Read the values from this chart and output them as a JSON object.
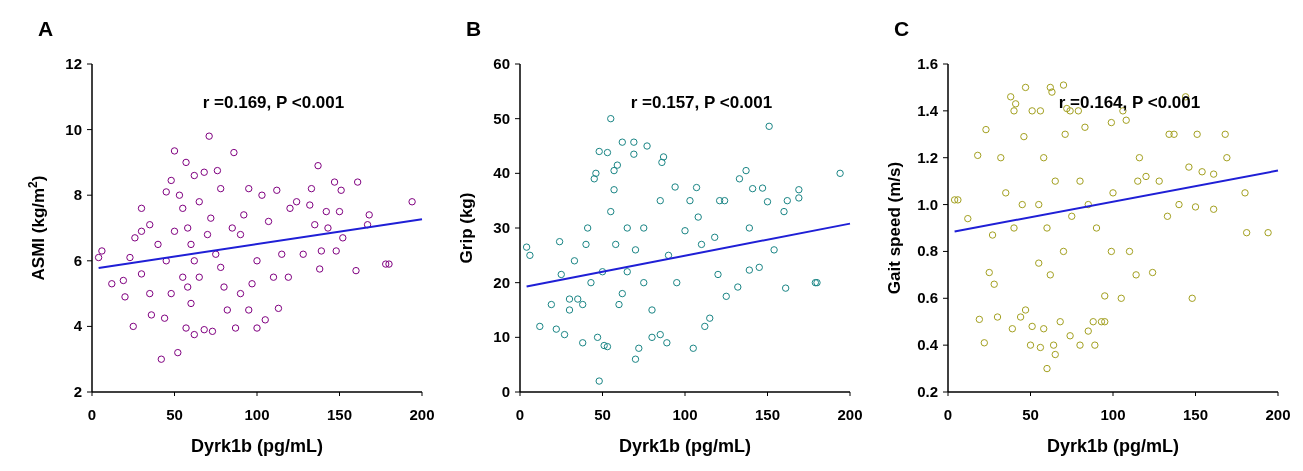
{
  "chart_data": [
    {
      "type": "scatter",
      "title": "A",
      "xlabel": "Dyrk1b (pg/mL)",
      "ylabel": "ASMI (kg/m$^{2}$)",
      "annotations": [
        "r =0.169, P <0.001"
      ],
      "xlim": [
        0,
        200
      ],
      "xticks": [
        0,
        50,
        100,
        150,
        200
      ],
      "ylim": [
        2,
        12
      ],
      "yticks": [
        2,
        4,
        6,
        8,
        10,
        12
      ],
      "series": [
        {
          "type": "scatter",
          "marker": "circle",
          "color": "#800080",
          "x": [
            4,
            6,
            12,
            19,
            20,
            25,
            30,
            42,
            52,
            50,
            57,
            62,
            68,
            71,
            76,
            86,
            137,
            147,
            161,
            194,
            180,
            178,
            160,
            152,
            148,
            139,
            138,
            119,
            113,
            105,
            100,
            87,
            73,
            62,
            57,
            68,
            44,
            36,
            23,
            26,
            30,
            35,
            40,
            45,
            48,
            53,
            55,
            58,
            60,
            62,
            55,
            58,
            60,
            65,
            70,
            72,
            75,
            78,
            80,
            82,
            85,
            90,
            92,
            95,
            97,
            100,
            103,
            107,
            110,
            112,
            115,
            120,
            124,
            128,
            132,
            133,
            135,
            142,
            150,
            151,
            168,
            167,
            143,
            90,
            95,
            48,
            45,
            50,
            65,
            78,
            30,
            35
          ],
          "values": [
            6.1,
            6.3,
            5.3,
            5.4,
            4.9,
            4.0,
            7.6,
            3.0,
            3.2,
            9.35,
            9.0,
            8.6,
            8.7,
            9.8,
            8.75,
            9.3,
            8.9,
            8.4,
            8.4,
            7.8,
            5.9,
            5.9,
            5.7,
            6.7,
            6.3,
            6.3,
            5.75,
            5.5,
            4.55,
            4.2,
            3.95,
            3.95,
            3.85,
            3.75,
            3.95,
            3.9,
            4.25,
            4.35,
            6.1,
            6.7,
            6.9,
            7.1,
            6.5,
            8.1,
            8.45,
            8.0,
            7.6,
            7.0,
            6.5,
            6.0,
            5.5,
            5.2,
            4.7,
            5.5,
            6.8,
            7.3,
            6.2,
            5.8,
            5.2,
            4.5,
            7.0,
            6.8,
            7.4,
            8.2,
            5.3,
            6.0,
            8.0,
            7.2,
            5.5,
            8.15,
            6.2,
            7.6,
            7.8,
            6.2,
            7.7,
            8.2,
            7.1,
            7.5,
            7.5,
            8.15,
            7.4,
            7.1,
            7.0,
            5.0,
            4.5,
            5.0,
            6.0,
            6.9,
            7.8,
            8.2,
            5.6,
            5.0
          ]
        },
        {
          "type": "line",
          "color": "#1f1fd6",
          "x": [
            4,
            200
          ],
          "values": [
            5.78,
            7.27
          ]
        }
      ]
    },
    {
      "type": "scatter",
      "title": "B",
      "xlabel": "Dyrk1b (pg/mL)",
      "ylabel": "Grip (kg)",
      "annotations": [
        "r =0.157, P <0.001"
      ],
      "xlim": [
        0,
        200
      ],
      "xticks": [
        0,
        50,
        100,
        150,
        200
      ],
      "ylim": [
        0,
        60
      ],
      "yticks": [
        0,
        10,
        20,
        30,
        40,
        50,
        60
      ],
      "series": [
        {
          "type": "scatter",
          "marker": "circle",
          "color": "#1a8585",
          "x": [
            4,
            6,
            12,
            19,
            22,
            25,
            24,
            27,
            30,
            33,
            38,
            38,
            41,
            43,
            45,
            46,
            47,
            48,
            48,
            51,
            53,
            53,
            55,
            57,
            57,
            59,
            62,
            69,
            69,
            70,
            72,
            77,
            80,
            85,
            86,
            87,
            89,
            94,
            105,
            107,
            108,
            112,
            115,
            121,
            124,
            125,
            133,
            137,
            139,
            141,
            147,
            150,
            151,
            154,
            160,
            161,
            162,
            169,
            169,
            180,
            179,
            194,
            145,
            139,
            132,
            120,
            118,
            60,
            62,
            65,
            70,
            75,
            80,
            58,
            55,
            65,
            90,
            95,
            100,
            103,
            110,
            40,
            50,
            35,
            30,
            85,
            75
          ],
          "values": [
            26.5,
            25,
            12,
            16,
            11.5,
            21.5,
            27.5,
            10.5,
            15,
            24,
            9,
            16,
            30,
            20,
            39,
            40,
            10,
            44,
            2,
            8.5,
            8.3,
            43.8,
            50,
            37,
            40.5,
            41.5,
            45.7,
            45.7,
            43.5,
            6,
            8,
            45,
            10,
            10.5,
            42,
            43,
            9,
            37.5,
            8,
            37.4,
            32,
            12,
            13.5,
            35,
            35,
            17.5,
            39,
            40.5,
            30,
            37.2,
            37.3,
            34.8,
            48.6,
            26,
            33,
            19,
            35,
            37,
            35.5,
            20,
            20,
            40,
            22.8,
            22.3,
            19.2,
            21.5,
            28.3,
            16,
            18,
            22,
            26,
            20,
            15,
            27,
            33,
            30,
            25,
            20,
            29.5,
            35,
            27,
            27,
            22,
            17,
            17,
            35,
            30
          ]
        },
        {
          "type": "line",
          "color": "#1f1fd6",
          "x": [
            4,
            200
          ],
          "values": [
            19.3,
            30.8
          ]
        }
      ]
    },
    {
      "type": "scatter",
      "title": "C",
      "xlabel": "Dyrk1b (pg/mL)",
      "ylabel": "Gait speed (m/s)",
      "annotations": [
        "r =0.164, P <0.001"
      ],
      "xlim": [
        0,
        200
      ],
      "xticks": [
        0,
        50,
        100,
        150,
        200
      ],
      "ylim": [
        0.2,
        1.6
      ],
      "yticks": [
        {
          "value": 0.2,
          "label": "0.2"
        },
        {
          "value": 0.4,
          "label": "0.4"
        },
        {
          "value": 0.6,
          "label": "0.6"
        },
        {
          "value": 0.8,
          "label": "0.8"
        },
        {
          "value": 1.0,
          "label": "1.0"
        },
        {
          "value": 1.2,
          "label": "1.2"
        },
        {
          "value": 1.4,
          "label": "1.4"
        },
        {
          "value": 1.6,
          "label": "1.6"
        }
      ],
      "series": [
        {
          "type": "scatter",
          "marker": "circle",
          "color": "#a3a020",
          "x": [
            4,
            6,
            12,
            18,
            19,
            22,
            23,
            25,
            27,
            28,
            30,
            32,
            38,
            39,
            40,
            41,
            44,
            46,
            47,
            47,
            50,
            51,
            51,
            56,
            56,
            58,
            60,
            62,
            63,
            64,
            65,
            68,
            70,
            71,
            72,
            74,
            74,
            79,
            80,
            83,
            85,
            88,
            89,
            93,
            95,
            95,
            99,
            99,
            105,
            106,
            108,
            114,
            116,
            124,
            128,
            133,
            134,
            137,
            140,
            144,
            146,
            148,
            150,
            151,
            154,
            161,
            161,
            168,
            169,
            180,
            181,
            194,
            55,
            60,
            65,
            70,
            75,
            80,
            85,
            90,
            55,
            62,
            58,
            45,
            40,
            35,
            100,
            110,
            115,
            120
          ],
          "values": [
            1.02,
            1.02,
            0.94,
            1.21,
            0.51,
            0.41,
            1.32,
            0.71,
            0.87,
            0.66,
            0.52,
            1.2,
            1.46,
            0.47,
            1.4,
            1.43,
            0.52,
            1.29,
            0.55,
            1.5,
            0.4,
            0.48,
            1.4,
            1.4,
            0.39,
            0.47,
            0.3,
            1.5,
            1.48,
            0.4,
            0.36,
            0.5,
            1.51,
            1.3,
            1.41,
            1.4,
            0.44,
            1.4,
            0.4,
            1.33,
            0.46,
            0.5,
            0.4,
            0.5,
            0.5,
            0.61,
            1.35,
            0.8,
            0.6,
            1.4,
            1.36,
            0.7,
            1.2,
            0.71,
            1.1,
            0.95,
            1.3,
            1.3,
            1.0,
            1.46,
            1.16,
            0.6,
            0.99,
            1.3,
            1.14,
            0.98,
            1.13,
            1.3,
            1.2,
            1.05,
            0.88,
            0.88,
            1.0,
            0.9,
            1.1,
            0.8,
            0.95,
            1.1,
            1.0,
            0.9,
            0.75,
            0.7,
            1.2,
            1.0,
            0.9,
            1.05,
            1.05,
            0.8,
            1.1,
            1.12
          ]
        },
        {
          "type": "line",
          "color": "#1f1fd6",
          "x": [
            4,
            200
          ],
          "values": [
            0.885,
            1.145
          ]
        }
      ]
    }
  ]
}
